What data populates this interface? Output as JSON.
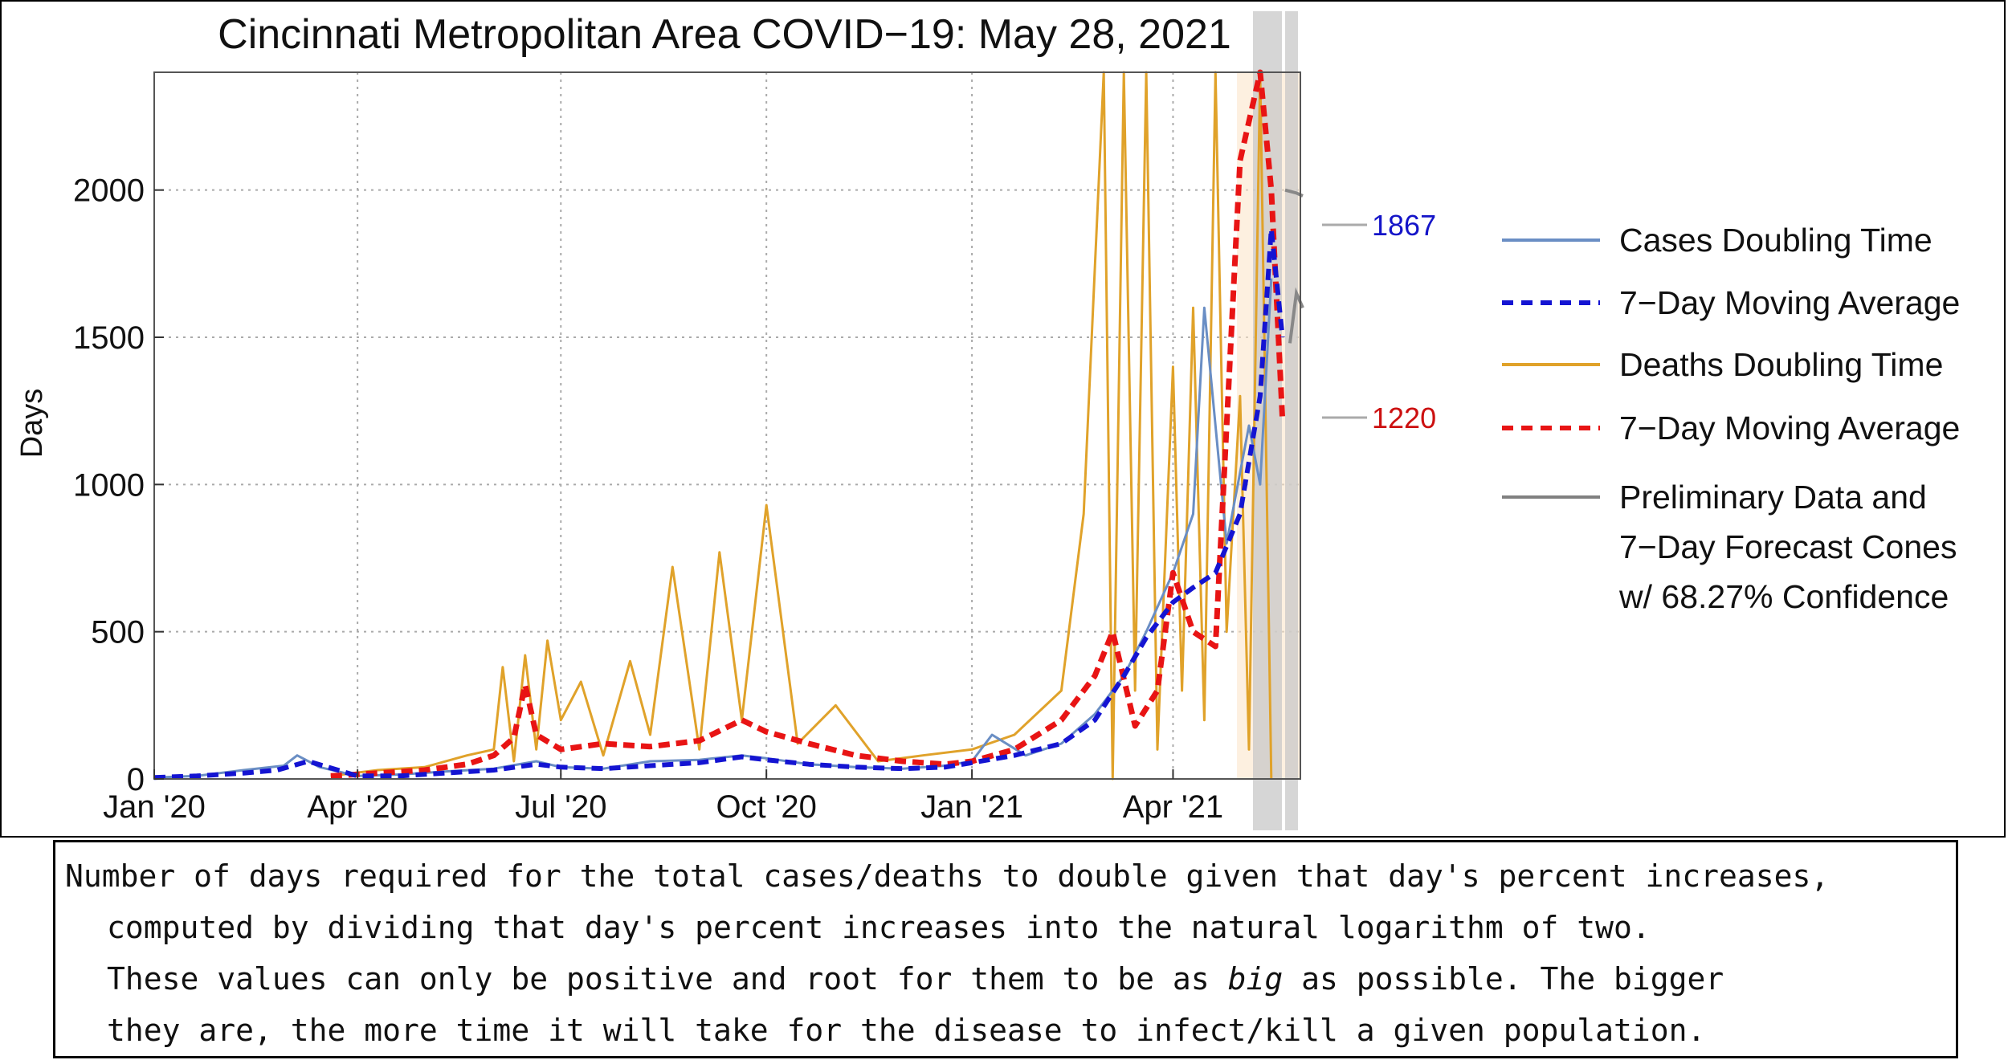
{
  "chart_data": {
    "type": "line",
    "title": "Cincinnati Metropolitan Area COVID−19: May 28, 2021",
    "xlabel": "",
    "ylabel": "Days",
    "ylim": [
      0,
      2400
    ],
    "xlim": [
      "2020-01-01",
      "2021-05-28"
    ],
    "y_ticks": [
      0,
      500,
      1000,
      1500,
      2000
    ],
    "y_tick_labels": [
      "0",
      "500",
      "1000",
      "1500",
      "2000"
    ],
    "x_ticks": [
      "2020-01-01",
      "2020-04-01",
      "2020-07-01",
      "2020-10-01",
      "2021-01-01",
      "2021-04-01"
    ],
    "x_tick_labels": [
      "Jan '20",
      "Apr '20",
      "Jul '20",
      "Oct '20",
      "Jan '21",
      "Apr '21"
    ],
    "grid": true,
    "legend_position": "right",
    "legend": [
      {
        "label": "Cases Doubling Time",
        "color": "#6a8ec4",
        "style": "solid"
      },
      {
        "label": "7−Day Moving Average",
        "color": "#1414d2",
        "style": "dashed"
      },
      {
        "label": "Deaths Doubling Time",
        "color": "#e0a22a",
        "style": "solid"
      },
      {
        "label": "7−Day Moving Average",
        "color": "#e81414",
        "style": "dashed"
      },
      {
        "label": "Preliminary Data and",
        "label_line2": "7−Day Forecast Cones",
        "label_line3": "w/ 68.27% Confidence",
        "color": "#808080",
        "style": "solid"
      }
    ],
    "annotations": [
      {
        "text": "1867",
        "value": 1867,
        "color": "#1414c8"
      },
      {
        "text": "1220",
        "value": 1220,
        "color": "#cc1010"
      }
    ],
    "series": [
      {
        "name": "Cases Doubling Time",
        "color": "#6a8ec4",
        "x": [
          "2020-01-01",
          "2020-01-20",
          "2020-02-10",
          "2020-02-28",
          "2020-03-05",
          "2020-03-15",
          "2020-04-01",
          "2020-04-20",
          "2020-05-10",
          "2020-06-01",
          "2020-06-20",
          "2020-07-01",
          "2020-07-20",
          "2020-08-10",
          "2020-09-01",
          "2020-09-20",
          "2020-10-01",
          "2020-10-20",
          "2020-11-10",
          "2020-12-01",
          "2020-12-20",
          "2021-01-01",
          "2021-01-10",
          "2021-01-25",
          "2021-02-10",
          "2021-02-25",
          "2021-03-10",
          "2021-03-20",
          "2021-04-01",
          "2021-04-10",
          "2021-04-15",
          "2021-04-25",
          "2021-05-05",
          "2021-05-10",
          "2021-05-15"
        ],
        "values": [
          5,
          10,
          30,
          45,
          80,
          40,
          10,
          15,
          25,
          35,
          60,
          40,
          35,
          60,
          65,
          80,
          70,
          50,
          40,
          35,
          45,
          60,
          150,
          80,
          120,
          220,
          350,
          500,
          700,
          900,
          1600,
          800,
          1200,
          1000,
          1700
        ]
      },
      {
        "name": "Cases 7-Day Moving Average",
        "color": "#1414d2",
        "x": [
          "2020-01-01",
          "2020-01-20",
          "2020-02-10",
          "2020-02-25",
          "2020-03-10",
          "2020-04-01",
          "2020-04-20",
          "2020-05-10",
          "2020-06-01",
          "2020-06-20",
          "2020-07-01",
          "2020-07-20",
          "2020-08-10",
          "2020-09-01",
          "2020-09-20",
          "2020-10-01",
          "2020-10-20",
          "2020-11-10",
          "2020-12-01",
          "2020-12-20",
          "2021-01-01",
          "2021-01-20",
          "2021-02-10",
          "2021-02-25",
          "2021-03-10",
          "2021-03-20",
          "2021-04-01",
          "2021-04-10",
          "2021-04-20",
          "2021-05-01",
          "2021-05-10",
          "2021-05-15",
          "2021-05-20"
        ],
        "values": [
          5,
          10,
          20,
          30,
          60,
          10,
          10,
          20,
          30,
          50,
          40,
          35,
          45,
          55,
          75,
          65,
          50,
          40,
          35,
          40,
          55,
          80,
          120,
          200,
          350,
          480,
          600,
          650,
          700,
          900,
          1300,
          1867,
          1500
        ]
      },
      {
        "name": "Deaths Doubling Time",
        "color": "#e0a22a",
        "x": [
          "2020-03-20",
          "2020-04-10",
          "2020-05-01",
          "2020-05-20",
          "2020-06-01",
          "2020-06-05",
          "2020-06-10",
          "2020-06-15",
          "2020-06-20",
          "2020-06-25",
          "2020-07-01",
          "2020-07-10",
          "2020-07-20",
          "2020-08-01",
          "2020-08-10",
          "2020-08-20",
          "2020-09-01",
          "2020-09-10",
          "2020-09-20",
          "2020-10-01",
          "2020-10-15",
          "2020-11-01",
          "2020-11-20",
          "2020-12-10",
          "2021-01-01",
          "2021-01-20",
          "2021-02-10",
          "2021-02-20",
          "2021-03-01",
          "2021-03-05",
          "2021-03-10",
          "2021-03-15",
          "2021-03-20",
          "2021-03-25",
          "2021-04-01",
          "2021-04-05",
          "2021-04-10",
          "2021-04-15",
          "2021-04-20",
          "2021-04-25",
          "2021-05-01",
          "2021-05-05",
          "2021-05-10",
          "2021-05-15"
        ],
        "values": [
          10,
          30,
          40,
          80,
          100,
          380,
          60,
          420,
          100,
          470,
          200,
          330,
          80,
          400,
          150,
          720,
          100,
          770,
          200,
          930,
          120,
          250,
          60,
          80,
          100,
          150,
          300,
          900,
          2400,
          0,
          2400,
          300,
          2400,
          100,
          1400,
          300,
          1600,
          200,
          2400,
          500,
          1300,
          100,
          2400,
          0
        ]
      },
      {
        "name": "Deaths 7-Day Moving Average",
        "color": "#e81414",
        "x": [
          "2020-03-20",
          "2020-04-10",
          "2020-05-01",
          "2020-05-20",
          "2020-06-01",
          "2020-06-10",
          "2020-06-15",
          "2020-06-20",
          "2020-07-01",
          "2020-07-20",
          "2020-08-10",
          "2020-09-01",
          "2020-09-20",
          "2020-10-01",
          "2020-10-20",
          "2020-11-10",
          "2020-12-01",
          "2020-12-20",
          "2021-01-01",
          "2021-01-20",
          "2021-02-10",
          "2021-02-25",
          "2021-03-05",
          "2021-03-15",
          "2021-03-25",
          "2021-04-01",
          "2021-04-10",
          "2021-04-20",
          "2021-04-25",
          "2021-05-01",
          "2021-05-10",
          "2021-05-15",
          "2021-05-20"
        ],
        "values": [
          10,
          20,
          30,
          50,
          80,
          140,
          320,
          150,
          100,
          120,
          110,
          130,
          200,
          160,
          120,
          80,
          60,
          50,
          60,
          100,
          200,
          350,
          500,
          180,
          300,
          700,
          500,
          450,
          1200,
          2100,
          2400,
          2000,
          1220
        ]
      }
    ]
  },
  "caption": {
    "line1": "Number of days required for the total cases/deaths to double given that day's percent increases,",
    "line2": "computed by dividing that day's percent increases into the natural logarithm of two.",
    "line3_before": "These values can only be positive and root for them to be as ",
    "line3_emphasis": "big",
    "line3_after": " as possible. The bigger",
    "line4": "they are, the more time it will take for the disease to infect/kill a given population."
  }
}
